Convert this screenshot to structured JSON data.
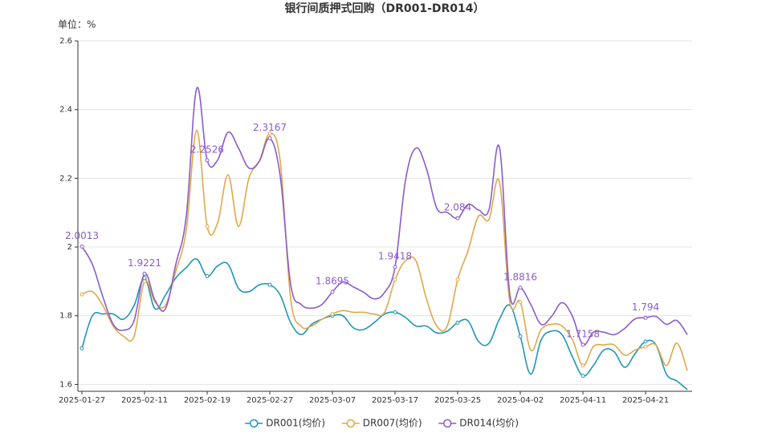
{
  "chart_data": {
    "type": "line",
    "title": "银行间质押式回购（DR001-DR014）",
    "unit_label": "单位：%",
    "categories": [
      "2025-01-27",
      null,
      null,
      null,
      null,
      null,
      "2025-02-11",
      null,
      null,
      null,
      null,
      null,
      "2025-02-19",
      null,
      null,
      null,
      null,
      null,
      "2025-02-27",
      null,
      null,
      null,
      null,
      null,
      "2025-03-07",
      null,
      null,
      null,
      null,
      null,
      "2025-03-17",
      null,
      null,
      null,
      null,
      null,
      "2025-03-25",
      null,
      null,
      null,
      null,
      null,
      "2025-04-02",
      null,
      null,
      null,
      null,
      null,
      "2025-04-11",
      null,
      null,
      null,
      null,
      null,
      "2025-04-21",
      null,
      null,
      null,
      null
    ],
    "ylim": [
      1.58,
      2.6
    ],
    "yticks": [
      1.6,
      1.8,
      2,
      2.2,
      2.4,
      2.6
    ],
    "grid": true,
    "legend": "bottom",
    "series": [
      {
        "name": "DR001(均价)",
        "color": "#1f96b8",
        "values": [
          1.705,
          1.8,
          1.805,
          1.805,
          1.79,
          1.83,
          1.91,
          1.82,
          1.86,
          1.91,
          1.94,
          1.965,
          1.915,
          1.945,
          1.95,
          1.88,
          1.87,
          1.89,
          1.89,
          1.86,
          1.78,
          1.745,
          1.775,
          1.79,
          1.8,
          1.8,
          1.765,
          1.76,
          1.78,
          1.805,
          1.81,
          1.795,
          1.77,
          1.77,
          1.75,
          1.755,
          1.78,
          1.785,
          1.725,
          1.72,
          1.79,
          1.83,
          1.74,
          1.63,
          1.73,
          1.755,
          1.745,
          1.68,
          1.625,
          1.655,
          1.7,
          1.695,
          1.65,
          1.69,
          1.725,
          1.715,
          1.63,
          1.61,
          1.585
        ]
      },
      {
        "name": "DR007(均价)",
        "color": "#e0a84a",
        "values": [
          1.862,
          1.87,
          1.83,
          1.77,
          1.74,
          1.74,
          1.9,
          1.84,
          1.83,
          1.93,
          2.05,
          2.34,
          2.06,
          2.07,
          2.21,
          2.06,
          2.2,
          2.25,
          2.33,
          2.25,
          1.85,
          1.77,
          1.77,
          1.79,
          1.805,
          1.815,
          1.81,
          1.81,
          1.805,
          1.81,
          1.905,
          1.96,
          1.96,
          1.85,
          1.77,
          1.77,
          1.905,
          1.99,
          2.09,
          2.08,
          2.19,
          1.84,
          1.84,
          1.7,
          1.76,
          1.775,
          1.77,
          1.73,
          1.655,
          1.71,
          1.715,
          1.715,
          1.685,
          1.7,
          1.71,
          1.715,
          1.655,
          1.72,
          1.64
        ]
      },
      {
        "name": "DR014(均价)",
        "color": "#8a5ccc",
        "values": [
          2.0013,
          1.95,
          1.856,
          1.775,
          1.758,
          1.786,
          1.9221,
          1.845,
          1.82,
          1.95,
          2.09,
          2.462,
          2.2526,
          2.253,
          2.334,
          2.288,
          2.23,
          2.25,
          2.3167,
          2.206,
          1.891,
          1.833,
          1.822,
          1.833,
          1.8695,
          1.898,
          1.884,
          1.868,
          1.849,
          1.868,
          1.9418,
          2.194,
          2.288,
          2.229,
          2.113,
          2.101,
          2.084,
          2.124,
          2.108,
          2.108,
          2.29,
          1.861,
          1.8816,
          1.833,
          1.775,
          1.798,
          1.838,
          1.798,
          1.7158,
          1.752,
          1.752,
          1.745,
          1.763,
          1.791,
          1.794,
          1.798,
          1.775,
          1.786,
          1.745
        ],
        "value_labels": [
          "2.0013",
          null,
          null,
          null,
          null,
          null,
          "1.9221",
          null,
          null,
          null,
          null,
          null,
          "2.2526",
          null,
          null,
          null,
          null,
          null,
          "2.3167",
          null,
          null,
          null,
          null,
          null,
          "1.8695",
          null,
          null,
          null,
          null,
          null,
          "1.9418",
          null,
          null,
          null,
          null,
          null,
          "2.084",
          null,
          null,
          null,
          null,
          null,
          "1.8816",
          null,
          null,
          null,
          null,
          null,
          "1.7158",
          null,
          null,
          null,
          null,
          null,
          "1.794",
          null,
          null,
          null,
          null
        ]
      }
    ]
  }
}
